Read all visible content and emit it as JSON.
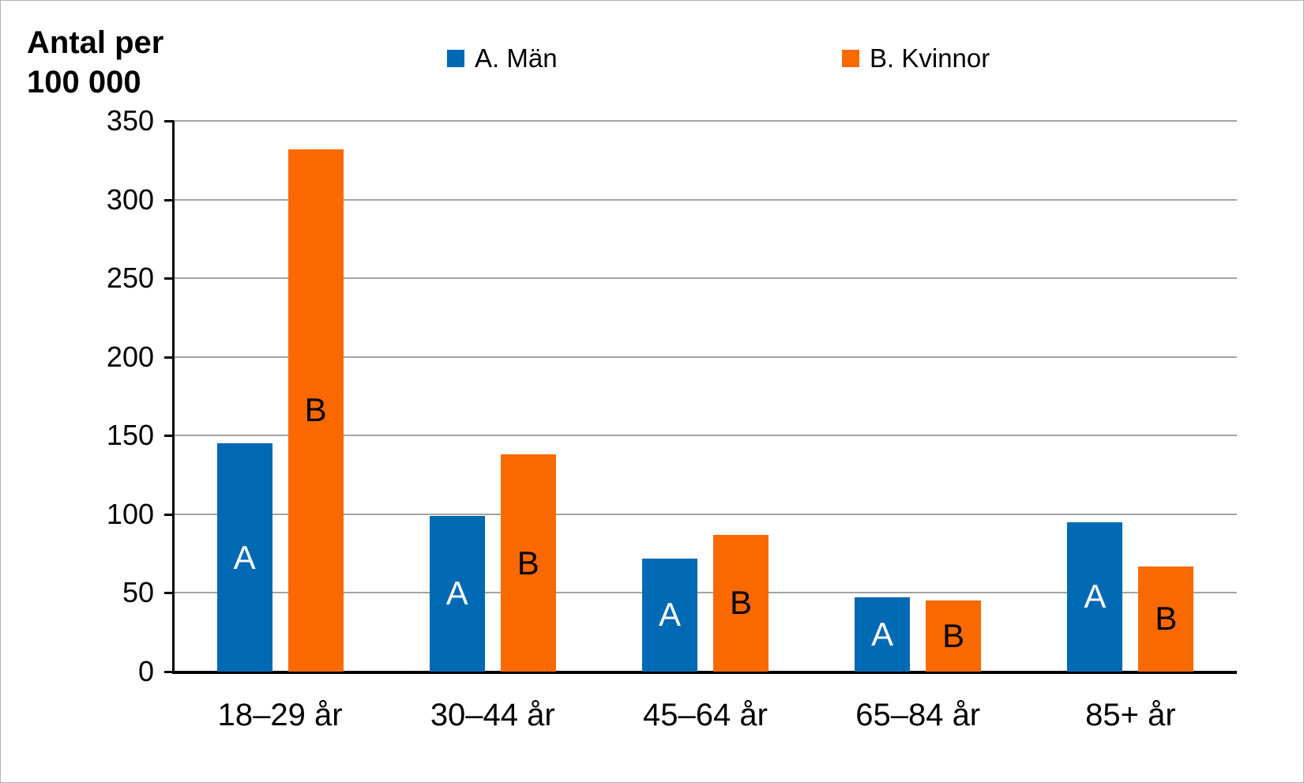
{
  "title": {
    "text": "Antal per\n100 000"
  },
  "legend": [
    {
      "label": "A. Män",
      "color": "#0069B4"
    },
    {
      "label": "B. Kvinnor",
      "color": "#F96900"
    }
  ],
  "chart_data": {
    "type": "bar",
    "categories": [
      "18–29 år",
      "30–44 år",
      "45–64 år",
      "65–84 år",
      "85+ år"
    ],
    "series": [
      {
        "name": "A. Män",
        "letter": "A",
        "color": "#0069B4",
        "label_color": "#FFFFFF",
        "values": [
          145,
          99,
          72,
          47,
          95
        ]
      },
      {
        "name": "B. Kvinnor",
        "letter": "B",
        "color": "#F96900",
        "label_color": "#000000",
        "values": [
          332,
          138,
          87,
          45,
          67
        ]
      }
    ],
    "ylabel": "Antal per 100 000",
    "xlabel": "",
    "ylim": [
      0,
      350
    ],
    "yticks": [
      0,
      50,
      100,
      150,
      200,
      250,
      300,
      350
    ],
    "grid": "horizontal",
    "legend_position": "top",
    "colors": {
      "gridline": "#a3a3a3",
      "axis": "#000000",
      "background": "#ffffff"
    }
  }
}
